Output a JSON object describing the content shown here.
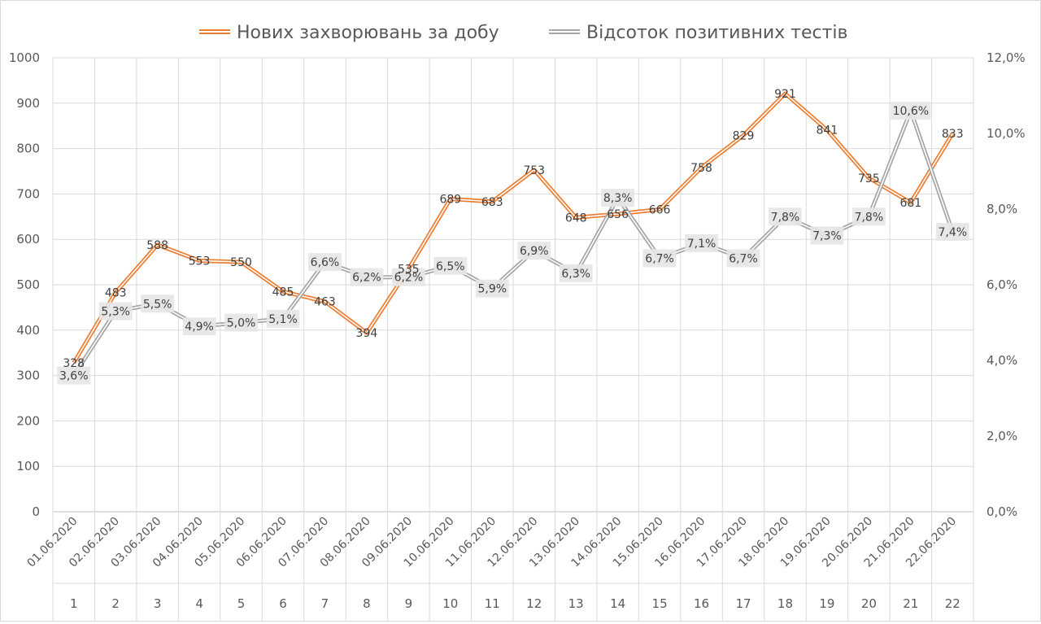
{
  "colors": {
    "orange": "#ED7D31",
    "gray": "#A5A5A5",
    "grid": "#D9D9D9",
    "label_bg": "#E7E6E6"
  },
  "chart_data": {
    "type": "line",
    "legend_position": "top",
    "grid": true,
    "categories": [
      "01.06.2020",
      "02.06.2020",
      "03.06.2020",
      "04.06.2020",
      "05.06.2020",
      "06.06.2020",
      "07.06.2020",
      "08.06.2020",
      "09.06.2020",
      "10.06.2020",
      "11.06.2020",
      "12.06.2020",
      "13.06.2020",
      "14.06.2020",
      "15.06.2020",
      "16.06.2020",
      "17.06.2020",
      "18.06.2020",
      "19.06.2020",
      "20.06.2020",
      "21.06.2020",
      "22.06.2020"
    ],
    "index_labels": [
      "1",
      "2",
      "3",
      "4",
      "5",
      "6",
      "7",
      "8",
      "9",
      "10",
      "11",
      "12",
      "13",
      "14",
      "15",
      "16",
      "17",
      "18",
      "19",
      "20",
      "21",
      "22"
    ],
    "y_left": {
      "range": [
        0,
        1000
      ],
      "ticks": [
        "0",
        "100",
        "200",
        "300",
        "400",
        "500",
        "600",
        "700",
        "800",
        "900",
        "1000"
      ]
    },
    "y_right": {
      "range": [
        0,
        12
      ],
      "ticks": [
        "0,0%",
        "2,0%",
        "4,0%",
        "6,0%",
        "8,0%",
        "10,0%",
        "12,0%"
      ]
    },
    "series": [
      {
        "name": "Нових захворювань за добу",
        "axis": "left",
        "color": "#ED7D31",
        "values": [
          328,
          483,
          588,
          553,
          550,
          485,
          463,
          394,
          535,
          689,
          683,
          753,
          648,
          656,
          666,
          758,
          829,
          921,
          841,
          735,
          681,
          833
        ],
        "labels": [
          "328",
          "483",
          "588",
          "553",
          "550",
          "485",
          "463",
          "394",
          "535",
          "689",
          "683",
          "753",
          "648",
          "656",
          "666",
          "758",
          "829",
          "921",
          "841",
          "735",
          "681",
          "833"
        ]
      },
      {
        "name": "Відсоток позитивних тестів",
        "axis": "right",
        "color": "#A5A5A5",
        "values": [
          3.6,
          5.3,
          5.5,
          4.9,
          5.0,
          5.1,
          6.6,
          6.2,
          6.2,
          6.5,
          5.9,
          6.9,
          6.3,
          8.3,
          6.7,
          7.1,
          6.7,
          7.8,
          7.3,
          7.8,
          10.6,
          7.4
        ],
        "labels": [
          "3,6%",
          "5,3%",
          "5,5%",
          "4,9%",
          "5,0%",
          "5,1%",
          "6,6%",
          "6,2%",
          "6,2%",
          "6,5%",
          "5,9%",
          "6,9%",
          "6,3%",
          "8,3%",
          "6,7%",
          "7,1%",
          "6,7%",
          "7,8%",
          "7,3%",
          "7,8%",
          "10,6%",
          "7,4%"
        ]
      }
    ]
  }
}
